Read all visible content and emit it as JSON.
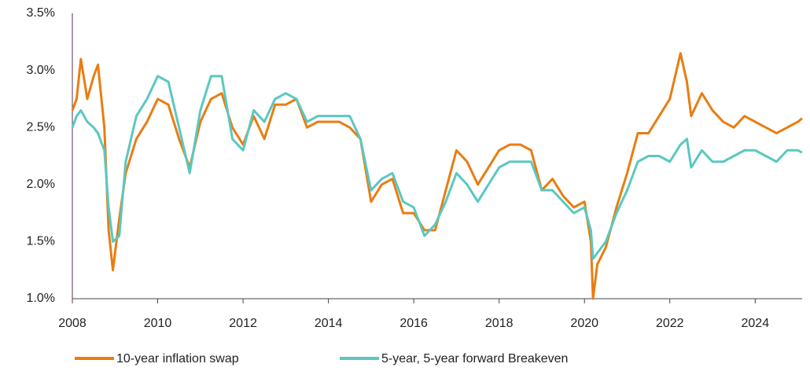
{
  "chart_data": {
    "type": "line",
    "x": [
      2008.0,
      2008.1,
      2008.2,
      2008.35,
      2008.5,
      2008.6,
      2008.75,
      2008.85,
      2008.95,
      2009.1,
      2009.25,
      2009.5,
      2009.75,
      2010.0,
      2010.25,
      2010.5,
      2010.75,
      2011.0,
      2011.25,
      2011.5,
      2011.75,
      2012.0,
      2012.25,
      2012.5,
      2012.75,
      2013.0,
      2013.25,
      2013.5,
      2013.75,
      2014.0,
      2014.25,
      2014.5,
      2014.75,
      2015.0,
      2015.25,
      2015.5,
      2015.75,
      2016.0,
      2016.25,
      2016.5,
      2016.75,
      2017.0,
      2017.25,
      2017.5,
      2017.75,
      2018.0,
      2018.25,
      2018.5,
      2018.75,
      2019.0,
      2019.25,
      2019.5,
      2019.75,
      2020.0,
      2020.15,
      2020.2,
      2020.3,
      2020.5,
      2020.75,
      2021.0,
      2021.25,
      2021.5,
      2021.75,
      2022.0,
      2022.25,
      2022.4,
      2022.5,
      2022.75,
      2023.0,
      2023.25,
      2023.5,
      2023.75,
      2024.0,
      2024.25,
      2024.5,
      2024.75,
      2025.0,
      2025.1
    ],
    "series": [
      {
        "name": "10-year inflation swap",
        "color": "#e87d12",
        "values": [
          2.65,
          2.75,
          3.1,
          2.75,
          2.95,
          3.05,
          2.5,
          1.6,
          1.25,
          1.7,
          2.1,
          2.4,
          2.55,
          2.75,
          2.7,
          2.4,
          2.15,
          2.55,
          2.75,
          2.8,
          2.5,
          2.35,
          2.6,
          2.4,
          2.7,
          2.7,
          2.75,
          2.5,
          2.55,
          2.55,
          2.55,
          2.5,
          2.4,
          1.85,
          2.0,
          2.05,
          1.75,
          1.75,
          1.6,
          1.6,
          1.95,
          2.3,
          2.2,
          2.0,
          2.15,
          2.3,
          2.35,
          2.35,
          2.3,
          1.95,
          2.05,
          1.9,
          1.8,
          1.85,
          1.5,
          1.0,
          1.3,
          1.45,
          1.8,
          2.1,
          2.45,
          2.45,
          2.6,
          2.75,
          3.15,
          2.9,
          2.6,
          2.8,
          2.65,
          2.55,
          2.5,
          2.6,
          2.55,
          2.5,
          2.45,
          2.5,
          2.55,
          2.58
        ]
      },
      {
        "name": "5-year, 5-year forward Breakeven",
        "color": "#5bc8c0",
        "values": [
          2.5,
          2.6,
          2.65,
          2.55,
          2.5,
          2.45,
          2.3,
          1.8,
          1.5,
          1.55,
          2.2,
          2.6,
          2.75,
          2.95,
          2.9,
          2.5,
          2.1,
          2.65,
          2.95,
          2.95,
          2.4,
          2.3,
          2.65,
          2.55,
          2.75,
          2.8,
          2.75,
          2.55,
          2.6,
          2.6,
          2.6,
          2.6,
          2.4,
          1.95,
          2.05,
          2.1,
          1.85,
          1.8,
          1.55,
          1.65,
          1.85,
          2.1,
          2.0,
          1.85,
          2.0,
          2.15,
          2.2,
          2.2,
          2.2,
          1.95,
          1.95,
          1.85,
          1.75,
          1.8,
          1.6,
          1.35,
          1.4,
          1.5,
          1.75,
          1.95,
          2.2,
          2.25,
          2.25,
          2.2,
          2.35,
          2.4,
          2.15,
          2.3,
          2.2,
          2.2,
          2.25,
          2.3,
          2.3,
          2.25,
          2.2,
          2.3,
          2.3,
          2.28
        ]
      }
    ],
    "xlim": [
      2008,
      2025.1
    ],
    "xticks": [
      2008,
      2010,
      2012,
      2014,
      2016,
      2018,
      2020,
      2022,
      2024
    ],
    "ylim": [
      1.0,
      3.5
    ],
    "yticks": [
      {
        "value": 1.0,
        "label": "1.0%"
      },
      {
        "value": 1.5,
        "label": "1.5%"
      },
      {
        "value": 2.0,
        "label": "2.0%"
      },
      {
        "value": 2.5,
        "label": "2.5%"
      },
      {
        "value": 3.0,
        "label": "3.0%"
      },
      {
        "value": 3.5,
        "label": "3.5%"
      }
    ],
    "grid": false
  }
}
